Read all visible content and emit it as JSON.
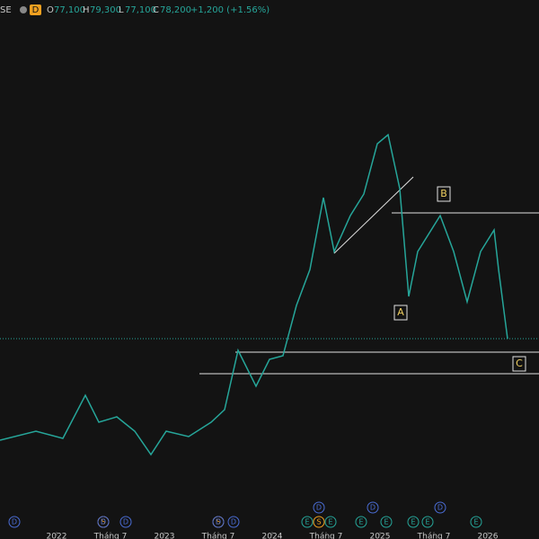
{
  "header": {
    "symbol": "SE",
    "interval": "D",
    "open_label": "O",
    "open": "77,100",
    "high_label": "H",
    "high": "79,300",
    "low_label": "L",
    "low": "77,100",
    "close_label": "C",
    "close": "78,200",
    "change": "+1,200 (+1.56%)"
  },
  "chart_data": {
    "type": "line",
    "color": "#26a69a",
    "x": [
      -6.3,
      -2.3,
      0.7,
      3.2,
      4.7,
      6.7,
      8.7,
      10.5,
      12.2,
      14.7,
      17.2,
      18.7,
      20.2,
      22.2,
      23.7,
      25.2,
      26.7,
      28.2,
      29.7,
      30.9,
      32.7,
      34.2,
      35.7,
      36.9,
      38.2,
      39.2,
      40.2,
      42.7,
      44.2,
      45.7,
      47.2,
      48.7,
      49.2,
      50.2
    ],
    "values": [
      50,
      52.5,
      50.5,
      62.5,
      55,
      56.5,
      52.5,
      46,
      52.5,
      51,
      55,
      58.5,
      75,
      65,
      72.5,
      73.5,
      87.5,
      97.5,
      117.5,
      102.5,
      112.5,
      118.5,
      132.5,
      135,
      120,
      90,
      102.5,
      112.5,
      102.5,
      88.5,
      102.5,
      108.5,
      97.5,
      78.2
    ],
    "xlim": [
      -6.3,
      53.7
    ],
    "ylim": [
      22.5,
      172.5
    ],
    "xticks": [
      {
        "value": 0,
        "label": "2022"
      },
      {
        "value": 6,
        "label": "Tháng 7"
      },
      {
        "value": 12,
        "label": "2023"
      },
      {
        "value": 18,
        "label": "Tháng 7"
      },
      {
        "value": 24,
        "label": "2024"
      },
      {
        "value": 30,
        "label": "Tháng 7"
      },
      {
        "value": 36,
        "label": "2025"
      },
      {
        "value": 42,
        "label": "Tháng 7"
      },
      {
        "value": 48,
        "label": "2026"
      }
    ],
    "annotations": [
      "A",
      "B",
      "C"
    ],
    "events": [
      "D",
      "S",
      "D",
      "D",
      "S",
      "D",
      "D",
      "S",
      "E",
      "E",
      "D",
      "E",
      "E",
      "D",
      "E",
      "E",
      "D",
      "E"
    ]
  }
}
